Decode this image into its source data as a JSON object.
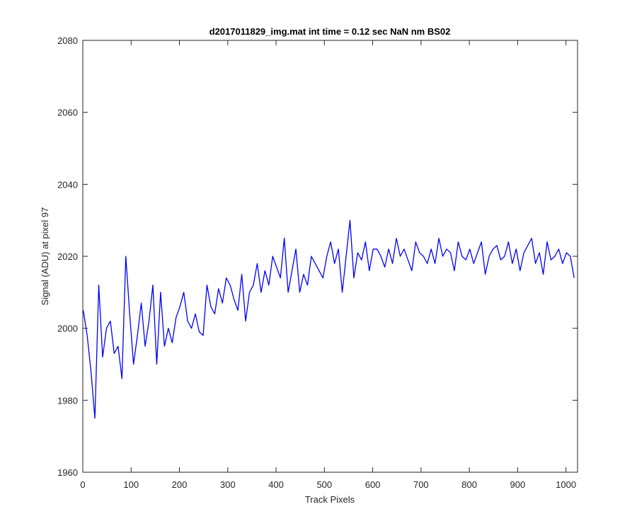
{
  "chart_data": {
    "type": "line",
    "title": "d2017011829_img.mat int time = 0.12 sec  NaN nm BS02",
    "xlabel": "Track Pixels",
    "ylabel": "Signal (ADU) at pixel 97",
    "xlim": [
      0,
      1024
    ],
    "ylim": [
      1960,
      2080
    ],
    "xticks": [
      0,
      100,
      200,
      300,
      400,
      500,
      600,
      700,
      800,
      900,
      1000
    ],
    "yticks": [
      1960,
      1980,
      2000,
      2020,
      2040,
      2060,
      2080
    ],
    "grid": false,
    "legend": "none",
    "series": [
      {
        "color": "#0000ff",
        "x_start": 1,
        "x_step": 8,
        "values": [
          2005,
          1998,
          1988,
          1975,
          2012,
          1992,
          2000,
          2002,
          1993,
          1995,
          1986,
          2020,
          2004,
          1990,
          1998,
          2007,
          1995,
          2002,
          2012,
          1990,
          2010,
          1995,
          2000,
          1996,
          2003,
          2006,
          2010,
          2002,
          2000,
          2004,
          1999,
          1998,
          2012,
          2006,
          2004,
          2011,
          2007,
          2014,
          2012,
          2008,
          2005,
          2015,
          2002,
          2010,
          2012,
          2018,
          2010,
          2016,
          2012,
          2020,
          2017,
          2014,
          2025,
          2010,
          2016,
          2022,
          2010,
          2015,
          2012,
          2020,
          2018,
          2016,
          2014,
          2020,
          2024,
          2018,
          2022,
          2010,
          2020,
          2030,
          2014,
          2021,
          2019,
          2024,
          2016,
          2022,
          2022,
          2020,
          2017,
          2022,
          2018,
          2025,
          2020,
          2022,
          2019,
          2016,
          2024,
          2021,
          2020,
          2018,
          2022,
          2018,
          2025,
          2020,
          2022,
          2021,
          2016,
          2024,
          2020,
          2019,
          2022,
          2018,
          2021,
          2024,
          2015,
          2020,
          2022,
          2023,
          2019,
          2020,
          2024,
          2018,
          2022,
          2016,
          2021,
          2023,
          2025,
          2018,
          2021,
          2015,
          2024,
          2019,
          2020,
          2022,
          2018,
          2021,
          2020,
          2014
        ]
      }
    ]
  }
}
